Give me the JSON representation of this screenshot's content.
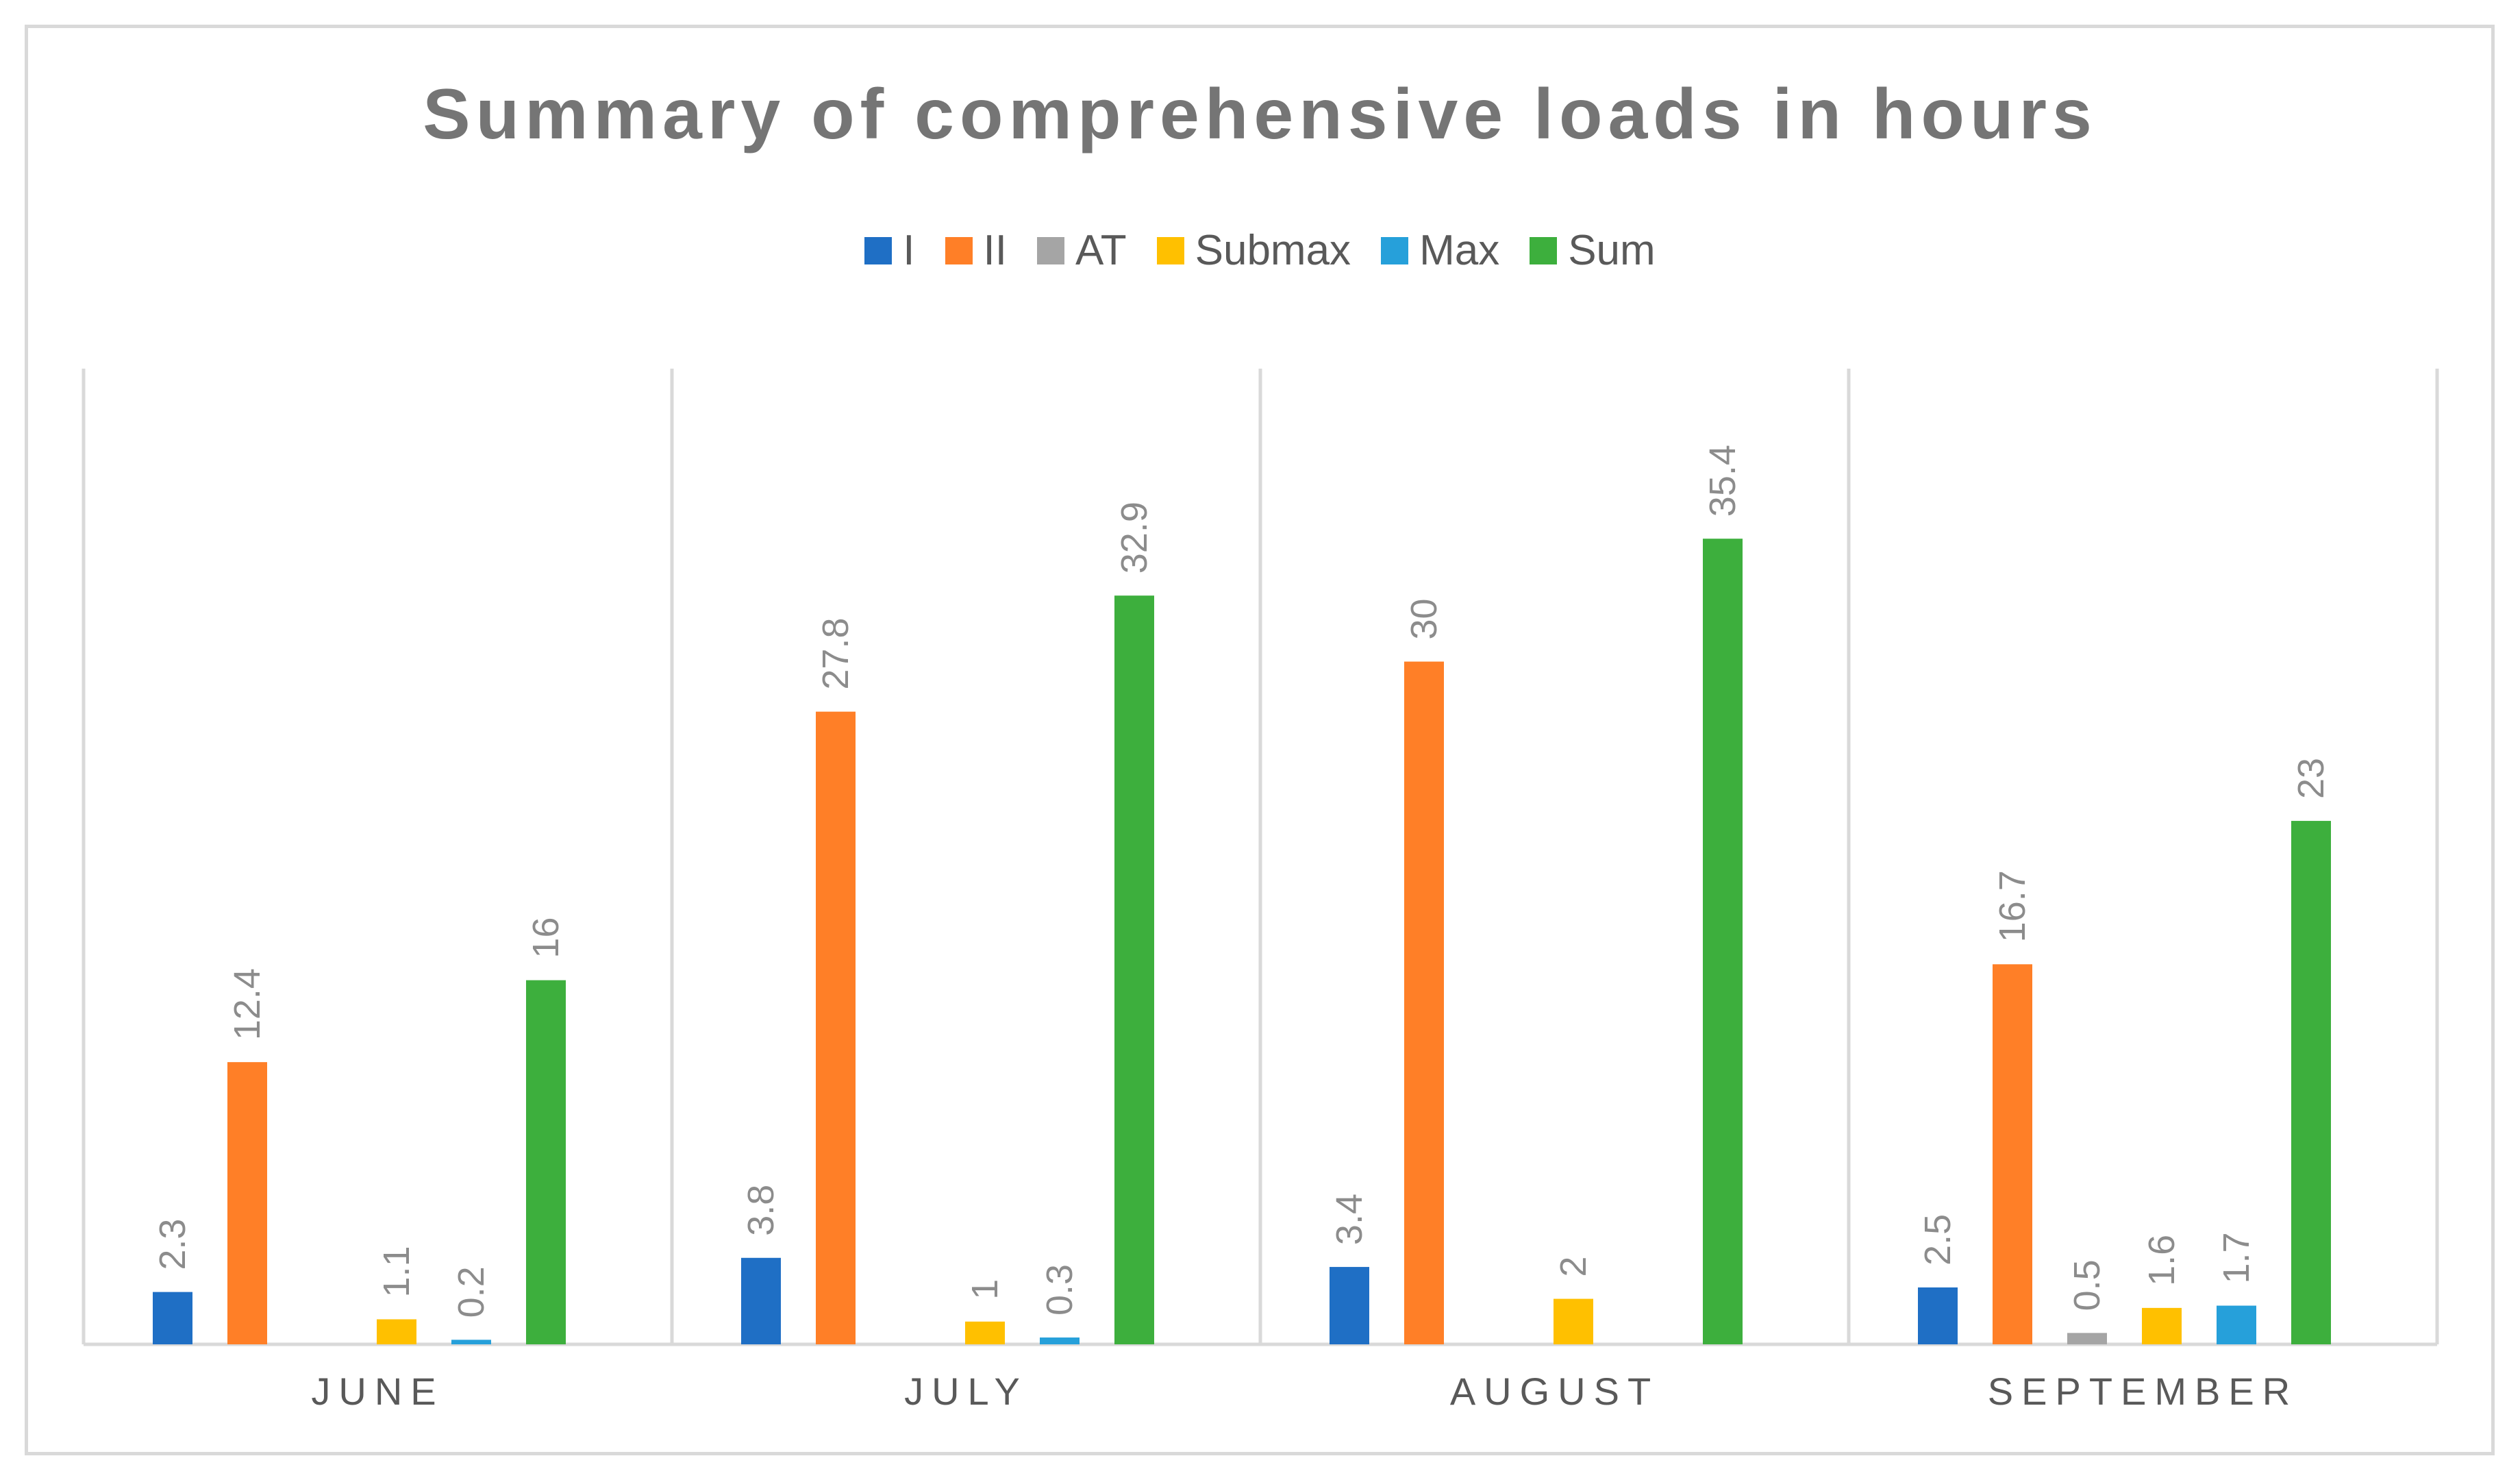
{
  "chart_data": {
    "type": "bar",
    "title": "Summary of comprehensive loads in hours",
    "categories": [
      "JUNE",
      "JULY",
      "AUGUST",
      "SEPTEMBER"
    ],
    "series": [
      {
        "name": "I",
        "color": "#1f6fc5",
        "values": [
          2.3,
          3.8,
          3.4,
          2.5
        ],
        "labels": [
          "2.3",
          "3.8",
          "3.4",
          "2.5"
        ]
      },
      {
        "name": "II",
        "color": "#ff7f27",
        "values": [
          12.4,
          27.8,
          30,
          16.7
        ],
        "labels": [
          "12.4",
          "27.8",
          "30",
          "16.7"
        ]
      },
      {
        "name": "AT",
        "color": "#a5a5a5",
        "values": [
          0,
          0,
          0,
          0.5
        ],
        "labels": [
          "",
          "",
          "",
          "0.5"
        ]
      },
      {
        "name": "Submax",
        "color": "#ffc000",
        "values": [
          1.1,
          1,
          2,
          1.6
        ],
        "labels": [
          "1.1",
          "1",
          "2",
          "1.6"
        ]
      },
      {
        "name": "Max",
        "color": "#26a0da",
        "values": [
          0.2,
          0.3,
          0,
          1.7
        ],
        "labels": [
          "0.2",
          "0.3",
          "",
          "1.7"
        ]
      },
      {
        "name": "Sum",
        "color": "#3daf3d",
        "values": [
          16,
          32.9,
          35.4,
          23
        ],
        "labels": [
          "16",
          "32.9",
          "35.4",
          "23"
        ]
      }
    ],
    "ylim": [
      0,
      40
    ],
    "xlabel": "",
    "ylabel": "",
    "legend_position": "top-center",
    "grid": false
  }
}
